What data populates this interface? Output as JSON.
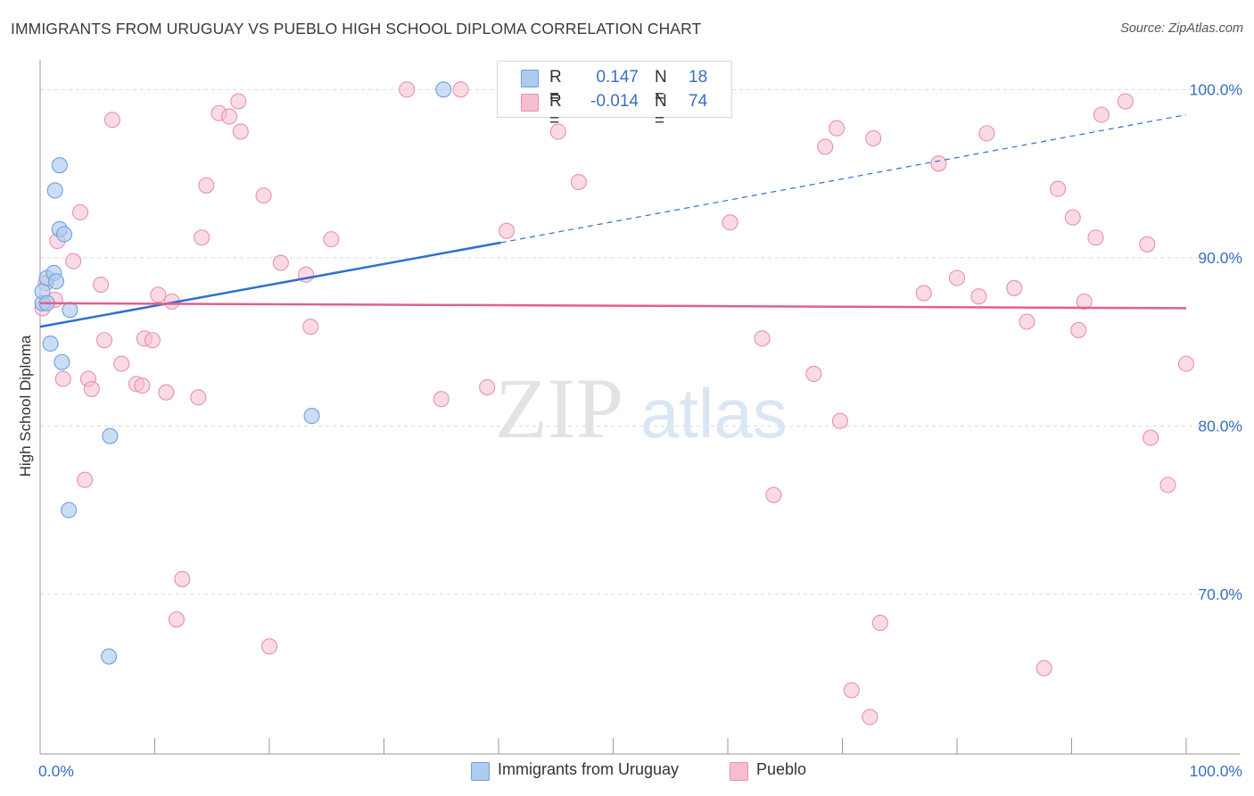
{
  "title": "IMMIGRANTS FROM URUGUAY VS PUEBLO HIGH SCHOOL DIPLOMA CORRELATION CHART",
  "source": "Source: ZipAtlas.com",
  "watermark": {
    "zip": "ZIP",
    "atlas": "atlas"
  },
  "legend": {
    "rows": [
      {
        "r_label": "R =",
        "r_value": "0.147",
        "n_label": "N =",
        "n_value": "18"
      },
      {
        "r_label": "R =",
        "r_value": "-0.014",
        "n_label": "N =",
        "n_value": "74"
      }
    ]
  },
  "bottom_legend": {
    "uruguay": "Immigrants from Uruguay",
    "pueblo": "Pueblo"
  },
  "colors": {
    "blue_fill": "#aecbf0",
    "blue_stroke": "#6f9fdc",
    "blue_line": "#2f6fd0",
    "pink_fill": "#f6bdd0",
    "pink_stroke": "#e890ae",
    "pink_line": "#e0608f",
    "tick_label": "#3a6fc4",
    "grid": "#d9d9d9"
  },
  "chart_data": {
    "type": "scatter",
    "title": "IMMIGRANTS FROM URUGUAY VS PUEBLO HIGH SCHOOL DIPLOMA CORRELATION CHART",
    "xlabel": "",
    "ylabel": "High School Diploma",
    "xlim": [
      0,
      100
    ],
    "ylim": [
      60.5,
      101
    ],
    "x_tick_labels": [
      {
        "value": 0,
        "label": "0.0%"
      },
      {
        "value": 100,
        "label": "100.0%"
      }
    ],
    "y_tick_labels": [
      {
        "value": 70,
        "label": "70.0%"
      },
      {
        "value": 80,
        "label": "80.0%"
      },
      {
        "value": 90,
        "label": "90.0%"
      },
      {
        "value": 100,
        "label": "100.0%"
      }
    ],
    "x_minor_ticks": [
      0,
      10,
      20,
      30,
      40,
      50,
      60,
      70,
      80,
      90,
      100
    ],
    "grid": true,
    "legend_position": "top-center",
    "series": [
      {
        "name": "Immigrants from Uruguay",
        "color": "#aecbf0",
        "points": [
          [
            0.2,
            87.3
          ],
          [
            0.2,
            88.0
          ],
          [
            0.6,
            88.8
          ],
          [
            1.2,
            89.1
          ],
          [
            1.4,
            88.6
          ],
          [
            0.6,
            87.3
          ],
          [
            2.6,
            86.9
          ],
          [
            0.9,
            84.9
          ],
          [
            1.9,
            83.8
          ],
          [
            1.3,
            94.0
          ],
          [
            1.7,
            95.5
          ],
          [
            1.7,
            91.7
          ],
          [
            2.1,
            91.4
          ],
          [
            6.1,
            79.4
          ],
          [
            2.5,
            75.0
          ],
          [
            6.0,
            66.3
          ],
          [
            23.7,
            80.6
          ],
          [
            35.2,
            100.0
          ]
        ],
        "trend": {
          "x": [
            0,
            40.2
          ],
          "y": [
            85.9,
            90.9
          ],
          "dashed_to": [
            100,
            98.5
          ]
        }
      },
      {
        "name": "Pueblo",
        "color": "#f6bdd0",
        "points": [
          [
            0.2,
            87.0
          ],
          [
            0.5,
            88.5
          ],
          [
            1.3,
            87.5
          ],
          [
            1.5,
            91.0
          ],
          [
            2.0,
            82.8
          ],
          [
            2.9,
            89.8
          ],
          [
            3.5,
            92.7
          ],
          [
            3.9,
            76.8
          ],
          [
            4.2,
            82.8
          ],
          [
            4.5,
            82.2
          ],
          [
            5.3,
            88.4
          ],
          [
            5.6,
            85.1
          ],
          [
            6.3,
            98.2
          ],
          [
            7.1,
            83.7
          ],
          [
            8.4,
            82.5
          ],
          [
            8.9,
            82.4
          ],
          [
            9.1,
            85.2
          ],
          [
            9.8,
            85.1
          ],
          [
            10.3,
            87.8
          ],
          [
            11.0,
            82.0
          ],
          [
            11.5,
            87.4
          ],
          [
            11.9,
            68.5
          ],
          [
            12.4,
            70.9
          ],
          [
            13.8,
            81.7
          ],
          [
            14.1,
            91.2
          ],
          [
            14.5,
            94.3
          ],
          [
            15.6,
            98.6
          ],
          [
            16.5,
            98.4
          ],
          [
            17.3,
            99.3
          ],
          [
            17.5,
            97.5
          ],
          [
            19.5,
            93.7
          ],
          [
            20.0,
            66.9
          ],
          [
            21.0,
            89.7
          ],
          [
            23.2,
            89.0
          ],
          [
            23.6,
            85.9
          ],
          [
            25.4,
            91.1
          ],
          [
            32.0,
            100.0
          ],
          [
            35.0,
            81.6
          ],
          [
            36.7,
            100.0
          ],
          [
            39.0,
            82.3
          ],
          [
            40.7,
            91.6
          ],
          [
            45.0,
            100.0
          ],
          [
            45.2,
            97.5
          ],
          [
            47.0,
            94.5
          ],
          [
            60.2,
            92.1
          ],
          [
            63.0,
            85.2
          ],
          [
            64.0,
            75.9
          ],
          [
            67.5,
            83.1
          ],
          [
            68.5,
            96.6
          ],
          [
            69.5,
            97.7
          ],
          [
            69.8,
            80.3
          ],
          [
            70.8,
            64.3
          ],
          [
            72.4,
            62.7
          ],
          [
            72.7,
            97.1
          ],
          [
            73.3,
            68.3
          ],
          [
            77.1,
            87.9
          ],
          [
            78.4,
            95.6
          ],
          [
            80.0,
            88.8
          ],
          [
            81.9,
            87.7
          ],
          [
            82.6,
            97.4
          ],
          [
            85.0,
            88.2
          ],
          [
            86.1,
            86.2
          ],
          [
            87.6,
            65.6
          ],
          [
            88.8,
            94.1
          ],
          [
            90.1,
            92.4
          ],
          [
            90.6,
            85.7
          ],
          [
            91.1,
            87.4
          ],
          [
            92.1,
            91.2
          ],
          [
            92.6,
            98.5
          ],
          [
            94.7,
            99.3
          ],
          [
            96.6,
            90.8
          ],
          [
            96.9,
            79.3
          ],
          [
            98.4,
            76.5
          ],
          [
            100.0,
            83.7
          ]
        ],
        "trend": {
          "x": [
            0,
            100
          ],
          "y": [
            87.3,
            87.0
          ]
        }
      }
    ]
  }
}
